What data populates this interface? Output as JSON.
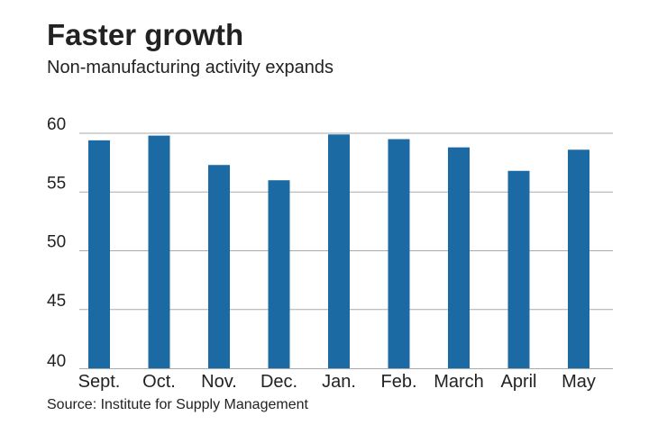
{
  "header": {
    "title": "Faster growth",
    "subtitle": "Non-manufacturing activity expands"
  },
  "footer": {
    "source": "Source: Institute for Supply Management"
  },
  "colors": {
    "bar": "#1c6aa4",
    "grid": "#aaaaaa",
    "text": "#222222"
  },
  "chart_data": {
    "type": "bar",
    "title": "Faster growth",
    "subtitle": "Non-manufacturing activity expands",
    "categories": [
      "Sept.",
      "Oct.",
      "Nov.",
      "Dec.",
      "Jan.",
      "Feb.",
      "March",
      "April",
      "May"
    ],
    "values": [
      59.4,
      59.8,
      57.3,
      56.0,
      59.9,
      59.5,
      58.8,
      56.8,
      58.6
    ],
    "yticks": [
      40,
      45,
      50,
      55,
      60
    ],
    "ylim": [
      40,
      60
    ],
    "grid": true,
    "legend": "none"
  }
}
